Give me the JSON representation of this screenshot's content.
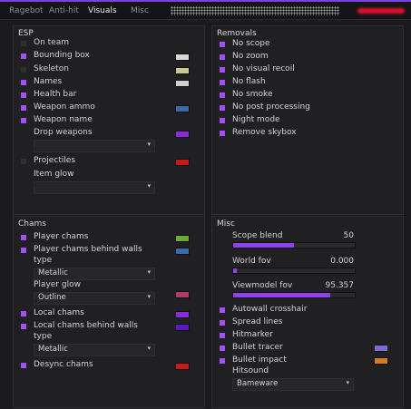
{
  "colors": {
    "accent": "#a64ff0"
  },
  "tabs": [
    "Ragebot",
    "Anti-hit",
    "Visuals",
    "Misc"
  ],
  "esp": {
    "title": "ESP",
    "items": [
      {
        "label": "On team",
        "checked": false
      },
      {
        "label": "Bounding box",
        "checked": true,
        "color": "#d8d8d8"
      },
      {
        "label": "Skeleton",
        "checked": false,
        "color": "#c8c890"
      },
      {
        "label": "Names",
        "checked": true,
        "color": "#d0d0d0"
      },
      {
        "label": "Health bar",
        "checked": true
      },
      {
        "label": "Weapon ammo",
        "checked": true,
        "color": "#3a6aa8"
      },
      {
        "label": "Weapon name",
        "checked": true
      },
      {
        "label": "Drop weapons",
        "checked": false,
        "color": "#8a2ad8"
      },
      {
        "label": "Projectiles",
        "checked": false,
        "color": "#c41a1a"
      },
      {
        "label": "Item glow",
        "checked": false
      }
    ]
  },
  "removals": {
    "title": "Removals",
    "items": [
      {
        "label": "No scope",
        "checked": true
      },
      {
        "label": "No zoom",
        "checked": true
      },
      {
        "label": "No visual recoil",
        "checked": true
      },
      {
        "label": "No flash",
        "checked": true
      },
      {
        "label": "No smoke",
        "checked": true
      },
      {
        "label": "No post processing",
        "checked": true
      },
      {
        "label": "Night mode",
        "checked": true
      },
      {
        "label": "Remove skybox",
        "checked": true
      }
    ]
  },
  "chams": {
    "title": "Chams",
    "items": [
      {
        "label": "Player chams",
        "checked": true,
        "color": "#6aaa3a"
      },
      {
        "label": "Player chams behind walls",
        "checked": true,
        "color": "#3a6aa8"
      },
      {
        "label": "type"
      },
      {
        "label": "Player glow",
        "color": "#b03a6a"
      },
      {
        "label": "Local chams",
        "checked": true,
        "color": "#8a2ad8"
      },
      {
        "label": "Local chams behind walls",
        "checked": true,
        "color": "#5a1ac0"
      },
      {
        "label": "type"
      },
      {
        "label": "Desync chams",
        "checked": true,
        "color": "#c41a1a"
      }
    ],
    "dropdown1": "Metallic",
    "dropdown2": "Outline",
    "dropdown3": "Metallic"
  },
  "misc": {
    "title": "Misc",
    "sliders": [
      {
        "label": "Scope blend",
        "value": "50",
        "fraction": 0.5
      },
      {
        "label": "World fov",
        "value": "0.000",
        "fraction": 0.03
      },
      {
        "label": "Viewmodel fov",
        "value": "95.357",
        "fraction": 0.8
      }
    ],
    "items": [
      {
        "label": "Autowall crosshair",
        "checked": true
      },
      {
        "label": "Spread lines",
        "checked": true
      },
      {
        "label": "Hitmarker",
        "checked": true
      },
      {
        "label": "Bullet tracer",
        "checked": true,
        "color": "#7a6ad8"
      },
      {
        "label": "Bullet impact",
        "checked": true,
        "color": "#d87a1a"
      },
      {
        "label": "Hitsound"
      }
    ],
    "hitsound_value": "Bameware"
  }
}
